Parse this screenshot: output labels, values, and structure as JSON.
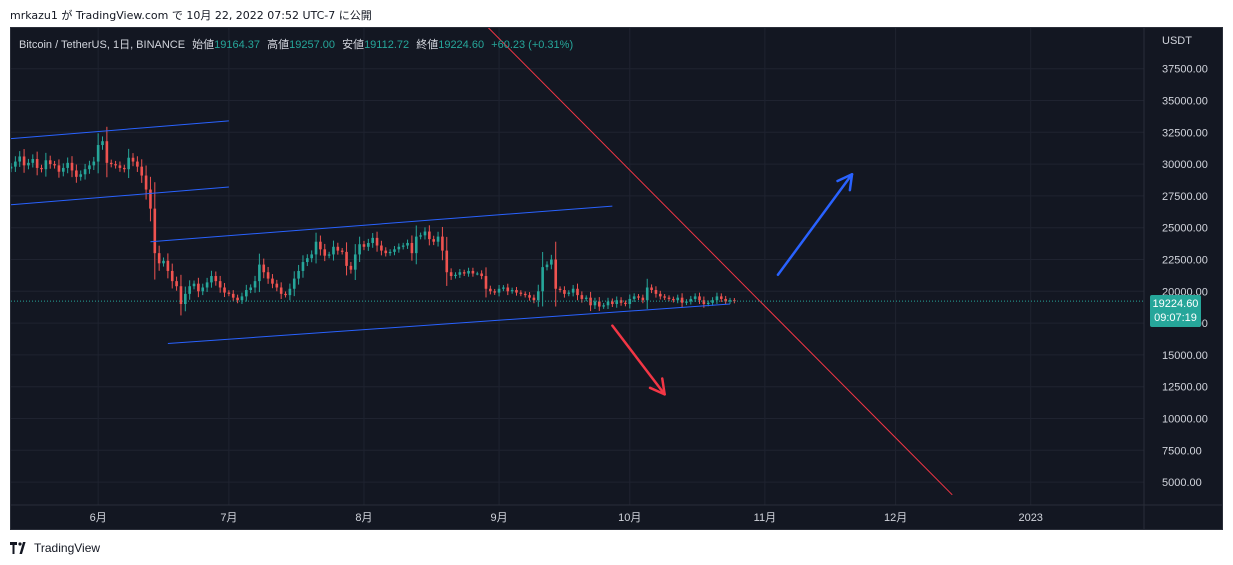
{
  "publisher_line": "mrkazu1 が TradingView.com で 10月 22, 2022 07:52 UTC-7 に公開",
  "header": {
    "symbol": "Bitcoin / TetherUS, 1日, BINANCE",
    "open_label": "始値",
    "open": "19164.37",
    "high_label": "高値",
    "high": "19257.00",
    "low_label": "安値",
    "low": "19112.72",
    "close_label": "終値",
    "close": "19224.60",
    "change": "+60.23 (+0.31%)"
  },
  "axis_currency": "USDT",
  "last_price": "19224.60",
  "countdown": "09:07:19",
  "footer_brand": "TradingView",
  "colors": {
    "background": "#131722",
    "grid": "#1f2330",
    "up": "#26a69a",
    "down": "#ef5350",
    "trendline": "#f23645",
    "channel": "#2962ff",
    "arrow_up": "#2962ff",
    "arrow_down": "#f23645"
  },
  "chart_data": {
    "type": "candlestick",
    "y_ticks": [
      "37500.00",
      "35000.00",
      "32500.00",
      "30000.00",
      "27500.00",
      "25000.00",
      "22500.00",
      "20000.00",
      "17500.00",
      "15000.00",
      "12500.00",
      "10000.00",
      "7500.00",
      "5000.00"
    ],
    "y_tick_values": [
      37500,
      35000,
      32500,
      30000,
      27500,
      25000,
      22500,
      20000,
      17500,
      15000,
      12500,
      10000,
      7500,
      5000
    ],
    "x_ticks": [
      "6月",
      "7月",
      "8月",
      "9月",
      "10月",
      "11月",
      "12月",
      "2023"
    ],
    "x_tick_days": [
      20,
      50,
      81,
      112,
      142,
      173,
      203,
      234
    ],
    "ylim": [
      3200,
      40700
    ],
    "xlim": [
      0,
      260
    ],
    "close_series": [
      29800,
      30200,
      30600,
      29900,
      30100,
      30400,
      29700,
      29600,
      30300,
      30000,
      29900,
      29400,
      29700,
      30100,
      29500,
      29000,
      29200,
      29600,
      29900,
      30200,
      31500,
      31800,
      30100,
      30000,
      29900,
      29700,
      29600,
      30500,
      30200,
      29800,
      29100,
      28000,
      26500,
      23000,
      22200,
      22400,
      21600,
      20800,
      20400,
      19000,
      19800,
      20400,
      20600,
      20000,
      20300,
      20700,
      21200,
      20800,
      20300,
      19900,
      19800,
      19500,
      19300,
      19600,
      20100,
      20300,
      20800,
      22100,
      21500,
      21000,
      20600,
      20300,
      19800,
      19700,
      20200,
      21000,
      21600,
      22300,
      22600,
      22900,
      23900,
      23300,
      22800,
      22900,
      23500,
      23200,
      23100,
      22000,
      21700,
      22900,
      23700,
      23500,
      23800,
      24200,
      23600,
      23200,
      23000,
      23100,
      23300,
      23500,
      23600,
      23800,
      23000,
      24300,
      24400,
      24700,
      24100,
      23900,
      24300,
      23200,
      21500,
      21200,
      21300,
      21500,
      21400,
      21600,
      21400,
      21400,
      21200,
      20200,
      20000,
      19900,
      20200,
      20300,
      20000,
      20100,
      19900,
      19800,
      19700,
      19500,
      19300,
      20000,
      21900,
      22100,
      22500,
      20200,
      20100,
      19800,
      19900,
      20200,
      19700,
      19400,
      19500,
      18900,
      19200,
      18800,
      18900,
      19200,
      19000,
      19300,
      19100,
      19000,
      19400,
      19600,
      19500,
      19300,
      20300,
      20100,
      19800,
      19600,
      19500,
      19400,
      19300,
      19500,
      19100,
      19200,
      19400,
      19600,
      19300,
      19000,
      19100,
      19300,
      19600,
      19400,
      19200,
      19300,
      19224.6
    ],
    "start_day": 0,
    "trendline": {
      "from": {
        "day": 98,
        "price": 44700
      },
      "to": {
        "day": 216,
        "price": 4000
      }
    },
    "channels": [
      {
        "from": {
          "day": 0,
          "price": 32000
        },
        "to": {
          "day": 50,
          "price": 33400
        }
      },
      {
        "from": {
          "day": 0,
          "price": 26800
        },
        "to": {
          "day": 50,
          "price": 28200
        }
      },
      {
        "from": {
          "day": 32,
          "price": 23900
        },
        "to": {
          "day": 138,
          "price": 26700
        }
      },
      {
        "from": {
          "day": 36,
          "price": 15900
        },
        "to": {
          "day": 165,
          "price": 19000
        }
      }
    ],
    "arrow_up": {
      "from": {
        "day": 176,
        "price": 21300
      },
      "to": {
        "day": 193,
        "price": 29200
      }
    },
    "arrow_down": {
      "from": {
        "day": 138,
        "price": 17300
      },
      "to": {
        "day": 150,
        "price": 11900
      }
    }
  }
}
